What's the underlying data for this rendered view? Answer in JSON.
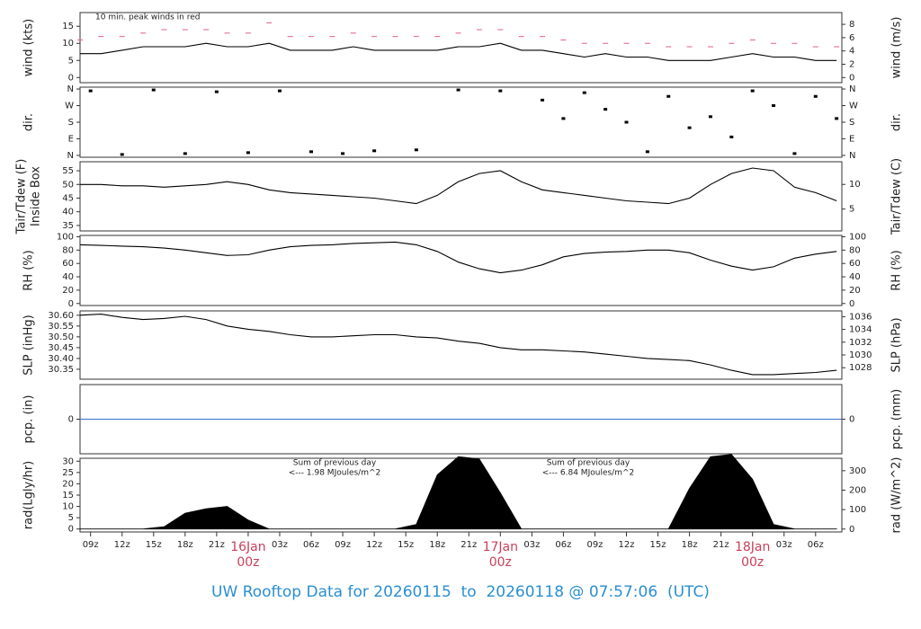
{
  "title": "UW Rooftop Data for 20260115  to  20260118 @ 07:57:06  (UTC)",
  "chart_data": [
    {
      "type": "line",
      "ylabel": [
        "wind (kts)"
      ],
      "y2label": "wind (m/s)",
      "annotations": [
        "10 min. peak winds in red"
      ],
      "xlim": [
        8,
        80.5
      ],
      "ylim": [
        -1.5,
        19
      ],
      "yticks": [
        0,
        5,
        10,
        15
      ],
      "y2lim": [
        -0.77,
        9.77
      ],
      "y2ticks": [
        0,
        2,
        4,
        6,
        8
      ],
      "x": [
        8,
        10,
        12,
        14,
        16,
        18,
        20,
        22,
        24,
        26,
        28,
        30,
        32,
        34,
        36,
        38,
        40,
        42,
        44,
        46,
        48,
        50,
        52,
        54,
        56,
        58,
        60,
        62,
        64,
        66,
        68,
        70,
        72,
        74,
        76,
        78,
        80
      ],
      "series": [
        {
          "color": "#000000",
          "values": [
            7,
            7,
            8,
            9,
            9,
            9,
            10,
            9,
            9,
            10,
            8,
            8,
            8,
            9,
            8,
            8,
            8,
            8,
            9,
            9,
            10,
            8,
            8,
            7,
            6,
            7,
            6,
            6,
            5,
            5,
            5,
            6,
            7,
            6,
            6,
            5,
            5
          ]
        },
        {
          "color": "#e0607a",
          "marker": "dash",
          "values": [
            11,
            12,
            12,
            13,
            14,
            14,
            14,
            13,
            13,
            16,
            12,
            12,
            12,
            13,
            12,
            12,
            12,
            12,
            13,
            14,
            14,
            12,
            12,
            11,
            10,
            10,
            10,
            10,
            9,
            9,
            9,
            10,
            11,
            10,
            10,
            9,
            9
          ]
        }
      ]
    },
    {
      "type": "scatter",
      "ylabel": [
        "dir."
      ],
      "y2label": "dir.",
      "xlim": [
        8,
        80.5
      ],
      "ylim": [
        -10,
        370
      ],
      "yticks": [
        {
          "value": 0,
          "label": "N"
        },
        {
          "value": 90,
          "label": "E"
        },
        {
          "value": 180,
          "label": "S"
        },
        {
          "value": 270,
          "label": "W"
        },
        {
          "value": 360,
          "label": "N"
        }
      ],
      "y2lim": [
        -10,
        370
      ],
      "y2ticks": [
        {
          "value": 0,
          "label": "N"
        },
        {
          "value": 90,
          "label": "E"
        },
        {
          "value": 180,
          "label": "S"
        },
        {
          "value": 270,
          "label": "W"
        },
        {
          "value": 360,
          "label": "N"
        }
      ],
      "x": [
        9,
        12,
        15,
        18,
        21,
        24,
        27,
        30,
        33,
        36,
        40,
        44,
        48,
        52,
        54,
        56,
        58,
        60,
        62,
        64,
        66,
        68,
        70,
        72,
        74,
        76,
        78,
        80
      ],
      "series": [
        {
          "color": "#000000",
          "values": [
            350,
            5,
            355,
            10,
            345,
            15,
            350,
            20,
            10,
            25,
            30,
            355,
            350,
            300,
            200,
            340,
            250,
            180,
            20,
            320,
            150,
            210,
            100,
            350,
            270,
            10,
            320,
            200
          ]
        }
      ]
    },
    {
      "type": "line",
      "ylabel": [
        "Tair/Tdew (F)",
        "Inside Box"
      ],
      "y2label": "Tair/Tdew (C)",
      "xlim": [
        8,
        80.5
      ],
      "ylim": [
        33,
        58.3
      ],
      "yticks": [
        35,
        40,
        45,
        50,
        55
      ],
      "y2lim": [
        0.56,
        14.6
      ],
      "y2ticks": [
        5,
        10
      ],
      "x": [
        8,
        10,
        12,
        14,
        16,
        18,
        20,
        22,
        24,
        26,
        28,
        30,
        32,
        34,
        36,
        38,
        40,
        42,
        44,
        46,
        48,
        50,
        52,
        54,
        56,
        58,
        60,
        62,
        64,
        66,
        68,
        70,
        72,
        74,
        76,
        78,
        80
      ],
      "series": [
        {
          "color": "#000000",
          "values": [
            50,
            50,
            49.5,
            49.5,
            49,
            49.5,
            50,
            51,
            50,
            48,
            47,
            46.5,
            46,
            45.5,
            45,
            44,
            43,
            46,
            51,
            54,
            55,
            51,
            48,
            47,
            46,
            45,
            44,
            43.5,
            43,
            45,
            50,
            54,
            56,
            55,
            49,
            47,
            44
          ]
        }
      ]
    },
    {
      "type": "line",
      "ylabel": [
        "RH (%)"
      ],
      "y2label": "RH (%)",
      "xlim": [
        8,
        80.5
      ],
      "ylim": [
        -3,
        102
      ],
      "yticks": [
        0,
        20,
        40,
        60,
        80,
        100
      ],
      "y2lim": [
        -3,
        102
      ],
      "y2ticks": [
        0,
        20,
        40,
        60,
        80,
        100
      ],
      "x": [
        8,
        10,
        12,
        14,
        16,
        18,
        20,
        22,
        24,
        26,
        28,
        30,
        32,
        34,
        36,
        38,
        40,
        42,
        44,
        46,
        48,
        50,
        52,
        54,
        56,
        58,
        60,
        62,
        64,
        66,
        68,
        70,
        72,
        74,
        76,
        78,
        80
      ],
      "series": [
        {
          "color": "#000000",
          "values": [
            88,
            87,
            86,
            85,
            83,
            80,
            76,
            72,
            73,
            80,
            85,
            87,
            88,
            90,
            91,
            92,
            88,
            78,
            62,
            52,
            46,
            50,
            58,
            70,
            75,
            77,
            78,
            80,
            80,
            76,
            65,
            56,
            50,
            55,
            68,
            74,
            78
          ]
        }
      ]
    },
    {
      "type": "line",
      "ylabel": [
        "SLP (inHg)"
      ],
      "y2label": "SLP (hPa)",
      "xlim": [
        8,
        80.5
      ],
      "ylim": [
        30.304,
        30.62
      ],
      "yticks": [
        {
          "value": 30.35,
          "label": "30.35"
        },
        {
          "value": 30.4,
          "label": "30.40"
        },
        30.45,
        {
          "value": 30.5,
          "label": "30.50"
        },
        30.55,
        {
          "value": 30.6,
          "label": "30.60"
        }
      ],
      "y2lim": [
        1026.2,
        1036.9
      ],
      "y2ticks": [
        1028,
        1030,
        1032,
        1034,
        1036
      ],
      "x": [
        8,
        10,
        12,
        14,
        16,
        18,
        20,
        22,
        24,
        26,
        28,
        30,
        32,
        34,
        36,
        38,
        40,
        42,
        44,
        46,
        48,
        50,
        52,
        54,
        56,
        58,
        60,
        62,
        64,
        66,
        68,
        70,
        72,
        74,
        76,
        78,
        80
      ],
      "series": [
        {
          "color": "#000000",
          "values": [
            30.6,
            30.605,
            30.59,
            30.58,
            30.585,
            30.595,
            30.58,
            30.55,
            30.535,
            30.525,
            30.51,
            30.5,
            30.5,
            30.505,
            30.51,
            30.51,
            30.5,
            30.495,
            30.48,
            30.47,
            30.45,
            30.44,
            30.44,
            30.435,
            30.43,
            30.42,
            30.41,
            30.4,
            30.395,
            30.39,
            30.37,
            30.345,
            30.325,
            30.325,
            30.33,
            30.335,
            30.345
          ]
        }
      ]
    },
    {
      "type": "line",
      "ylabel": [
        "pcp. (in)"
      ],
      "y2label": "pcp. (mm)",
      "xlim": [
        8,
        80.5
      ],
      "ylim": [
        -1,
        1
      ],
      "yticks": [
        0
      ],
      "y2lim": [
        -1,
        1
      ],
      "y2ticks": [
        0
      ],
      "x": [
        8,
        80.5
      ],
      "series": [
        {
          "color": "#3a6fc4",
          "values": [
            0,
            0
          ]
        }
      ]
    },
    {
      "type": "area",
      "ylabel": [
        "rad(Lgly/hr)"
      ],
      "y2label": "rad (W/m^2)",
      "annotations": [
        "Sum of previous day",
        "<--- 1.98 MJoules/m^2",
        "Sum of previous day",
        "<--- 6.84 MJoules/m^2"
      ],
      "xlim": [
        8,
        80.5
      ],
      "ylim": [
        -1.3,
        31.3
      ],
      "yticks": [
        0,
        5,
        10,
        15,
        20,
        25,
        30
      ],
      "y2lim": [
        -15,
        364
      ],
      "y2ticks": [
        0,
        100,
        200,
        300
      ],
      "xticks": [
        {
          "value": 9,
          "label": "09z"
        },
        {
          "value": 12,
          "label": "12z"
        },
        {
          "value": 15,
          "label": "15z"
        },
        {
          "value": 18,
          "label": "18z"
        },
        {
          "value": 21,
          "label": "21z"
        },
        {
          "value": 24,
          "label": "16Jan",
          "sublabel": "00z"
        },
        {
          "value": 27,
          "label": "03z"
        },
        {
          "value": 30,
          "label": "06z"
        },
        {
          "value": 33,
          "label": "09z"
        },
        {
          "value": 36,
          "label": "12z"
        },
        {
          "value": 39,
          "label": "15z"
        },
        {
          "value": 42,
          "label": "18z"
        },
        {
          "value": 45,
          "label": "21z"
        },
        {
          "value": 48,
          "label": "17Jan",
          "sublabel": "00z"
        },
        {
          "value": 51,
          "label": "03z"
        },
        {
          "value": 54,
          "label": "06z"
        },
        {
          "value": 57,
          "label": "09z"
        },
        {
          "value": 60,
          "label": "12z"
        },
        {
          "value": 63,
          "label": "15z"
        },
        {
          "value": 66,
          "label": "18z"
        },
        {
          "value": 69,
          "label": "21z"
        },
        {
          "value": 72,
          "label": "18Jan",
          "sublabel": "00z"
        },
        {
          "value": 75,
          "label": "03z"
        },
        {
          "value": 78,
          "label": "06z"
        }
      ],
      "x": [
        8,
        10,
        12,
        14,
        16,
        18,
        20,
        22,
        24,
        26,
        28,
        30,
        32,
        34,
        36,
        38,
        40,
        42,
        44,
        46,
        48,
        50,
        52,
        54,
        56,
        58,
        60,
        62,
        64,
        66,
        68,
        70,
        72,
        74,
        76,
        78,
        80
      ],
      "series": [
        {
          "color": "#000000",
          "values": [
            0,
            0,
            0,
            0,
            1,
            7,
            9,
            10,
            4,
            0,
            0,
            0,
            0,
            0,
            0,
            0,
            2,
            24,
            32,
            31,
            16,
            0,
            0,
            0,
            0,
            0,
            0,
            0,
            0,
            18,
            32,
            33,
            22,
            2,
            0,
            0,
            0
          ]
        }
      ]
    }
  ]
}
